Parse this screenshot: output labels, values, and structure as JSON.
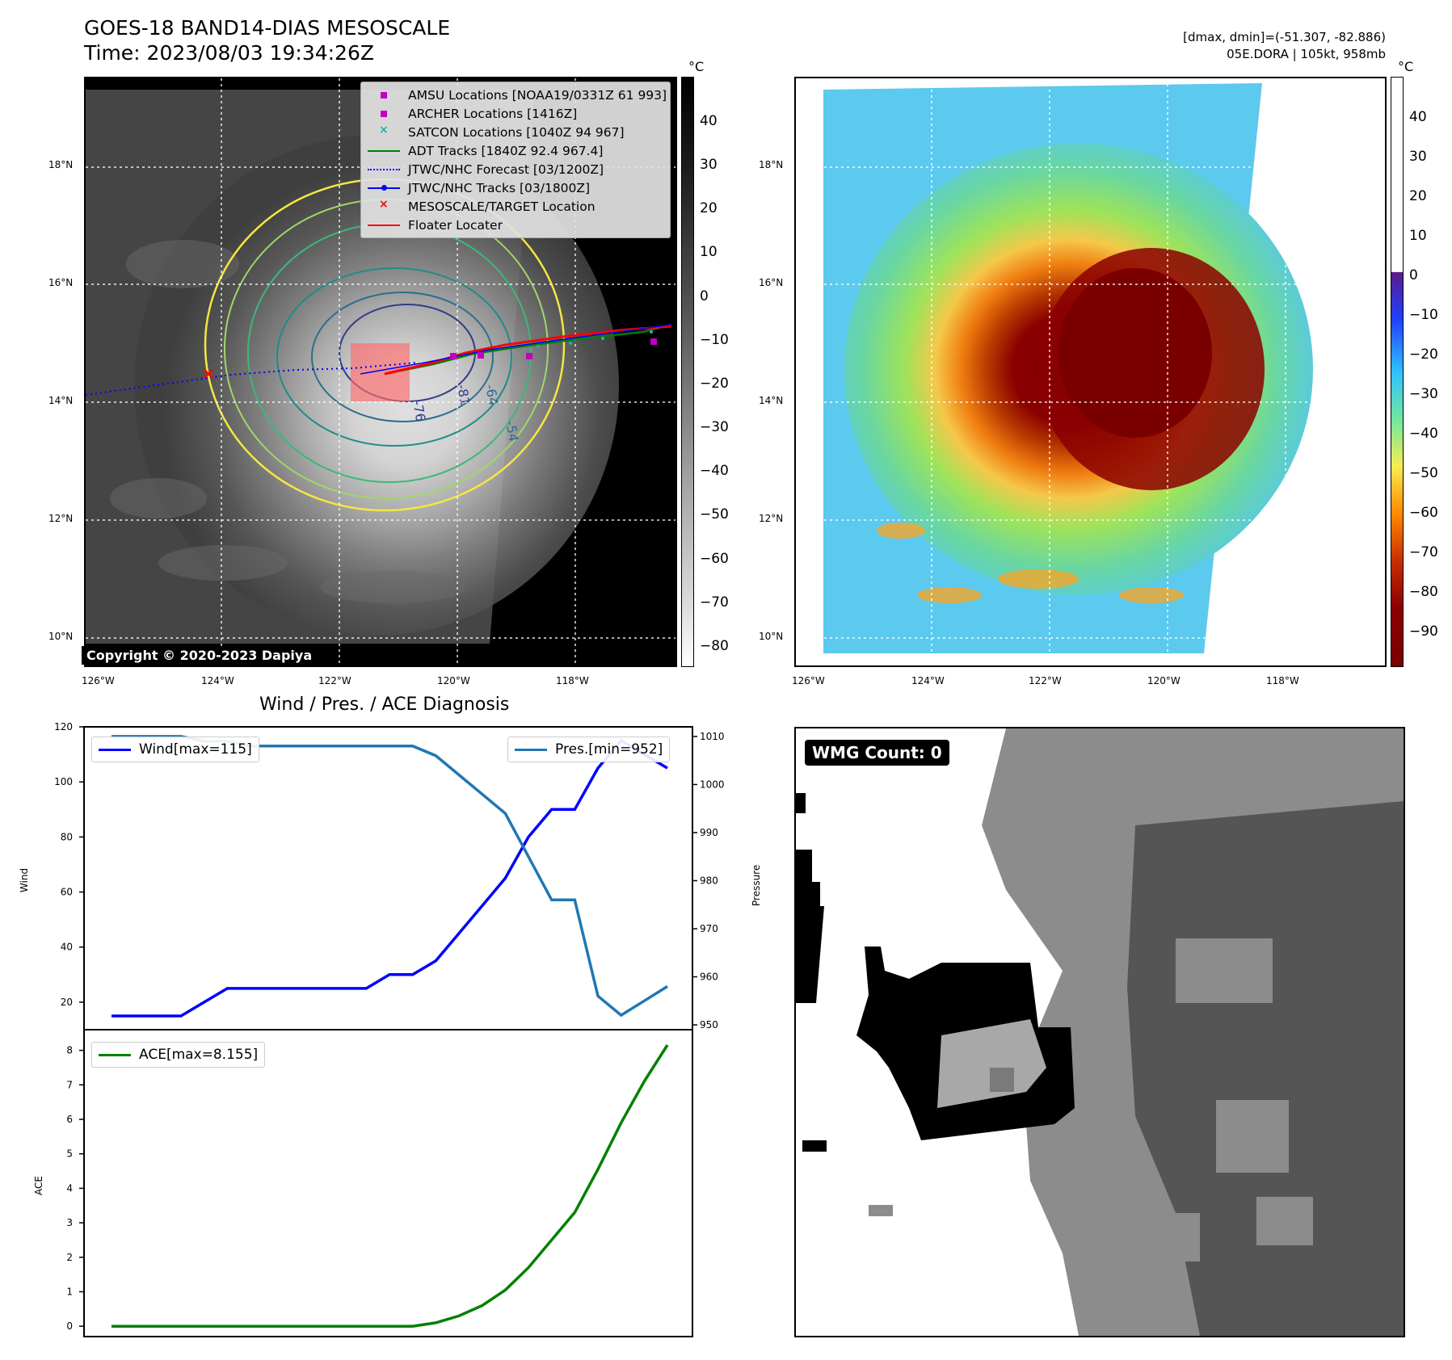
{
  "header": {
    "title": "GOES-18 BAND14-DIAS MESOSCALE",
    "time": "Time: 2023/08/03 19:34:26Z",
    "dmax_dmin": "[dmax, dmin]=(-51.307, -82.886)",
    "storm_info": "05E.DORA | 105kt, 958mb"
  },
  "colorbar_unit": "°C",
  "map": {
    "lat_labels": [
      "18°N",
      "16°N",
      "14°N",
      "12°N",
      "10°N"
    ],
    "lon_labels": [
      "126°W",
      "124°W",
      "122°W",
      "120°W",
      "118°W"
    ],
    "copyright": "Copyright © 2020-2023 Dapiya",
    "contour_labels": [
      "-81",
      "-76",
      "-64",
      "-54"
    ],
    "legend": [
      {
        "label": "AMSU Locations [NOAA19/0331Z 61 993]",
        "symbol": "square",
        "color": "#c000c0"
      },
      {
        "label": "ARCHER Locations [1416Z]",
        "symbol": "square",
        "color": "#c000c0"
      },
      {
        "label": "SATCON Locations [1040Z 94 967]",
        "symbol": "x",
        "color": "#20b2aa"
      },
      {
        "label": "ADT Tracks [1840Z 92.4 967.4]",
        "symbol": "line",
        "color": "#008000"
      },
      {
        "label": "JTWC/NHC Forecast [03/1200Z]",
        "symbol": "dotted",
        "color": "#0000ff"
      },
      {
        "label": "JTWC/NHC Tracks [03/1800Z]",
        "symbol": "line-dot",
        "color": "#0000ff"
      },
      {
        "label": "MESOSCALE/TARGET Location",
        "symbol": "x",
        "color": "#ff0000"
      },
      {
        "label": "Floater Locater",
        "symbol": "line",
        "color": "#ff0000"
      }
    ]
  },
  "colorbar_gray": {
    "ticks": [
      "40",
      "30",
      "20",
      "10",
      "0",
      "−10",
      "−20",
      "−30",
      "−40",
      "−50",
      "−60",
      "−70",
      "−80"
    ]
  },
  "colorbar_color": {
    "ticks": [
      "40",
      "30",
      "20",
      "10",
      "0",
      "−10",
      "−20",
      "−30",
      "−40",
      "−50",
      "−60",
      "−70",
      "−80",
      "−90"
    ]
  },
  "diagnosis": {
    "title": "Wind / Pres. / ACE Diagnosis",
    "wind_label": "Wind",
    "pressure_label": "Pressure",
    "ace_label": "ACE",
    "wind_legend": "Wind[max=115]",
    "pres_legend": "Pres.[min=952]",
    "ace_legend": "ACE[max=8.155]"
  },
  "chart_data": [
    {
      "type": "line",
      "title": "Wind / Pres. / ACE Diagnosis",
      "ylabel": "Wind",
      "ylim": [
        10,
        120
      ],
      "yticks": [
        20,
        40,
        60,
        80,
        100,
        120
      ],
      "series": [
        {
          "name": "Wind[max=115]",
          "color": "#0000ff",
          "values": [
            15,
            15,
            15,
            15,
            20,
            25,
            25,
            25,
            25,
            25,
            25,
            25,
            30,
            30,
            35,
            45,
            55,
            65,
            80,
            90,
            90,
            105,
            115,
            110,
            105
          ]
        }
      ]
    },
    {
      "type": "line",
      "ylabel": "Pressure",
      "ylim": [
        949,
        1012
      ],
      "yticks": [
        950,
        960,
        970,
        980,
        990,
        1000,
        1010
      ],
      "series": [
        {
          "name": "Pres.[min=952]",
          "color": "#1f77b4",
          "values": [
            1010,
            1010,
            1010,
            1010,
            1009,
            1009,
            1008,
            1008,
            1008,
            1008,
            1008,
            1008,
            1008,
            1008,
            1006,
            1002,
            998,
            994,
            985,
            976,
            976,
            956,
            952,
            955,
            958
          ]
        }
      ]
    },
    {
      "type": "line",
      "ylabel": "ACE",
      "ylim": [
        -0.3,
        8.6
      ],
      "yticks": [
        0,
        1,
        2,
        3,
        4,
        5,
        6,
        7,
        8
      ],
      "series": [
        {
          "name": "ACE[max=8.155]",
          "color": "#008000",
          "values": [
            0,
            0,
            0,
            0,
            0,
            0,
            0,
            0,
            0,
            0,
            0,
            0,
            0,
            0,
            0.1,
            0.3,
            0.6,
            1.05,
            1.7,
            2.5,
            3.3,
            4.55,
            5.9,
            7.1,
            8.155
          ]
        }
      ]
    }
  ],
  "wmg": {
    "count_label": "WMG Count: 0"
  }
}
